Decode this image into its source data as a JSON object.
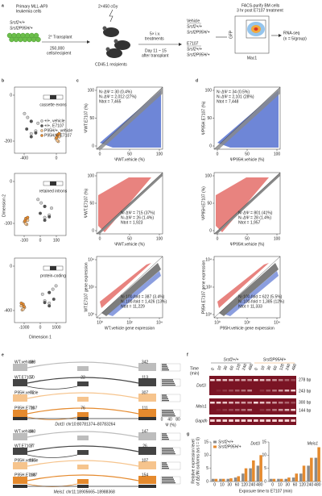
{
  "panel_labels": [
    "a",
    "b",
    "c",
    "d",
    "e",
    "f",
    "g"
  ],
  "a": {
    "source": [
      "Primary MLL-AF9",
      "leukemia cells"
    ],
    "genotypes": [
      "Srsf2+/+",
      "Srsf2P95H/+"
    ],
    "irradiation": "2×450 cGy",
    "transplant": "2° Transplant",
    "cells": [
      "250,000",
      "cells/recipient"
    ],
    "recipients": "CD45.1 recipients",
    "treatment": [
      "5× i.v.",
      "treatments"
    ],
    "timing": [
      "Day 11 ~ 15",
      "after transplant"
    ],
    "groups": [
      {
        "name": "Vehicle",
        "genotypes": [
          "Srsf2+/+",
          "Srsf2P95H/+"
        ]
      },
      {
        "name": "E7107",
        "genotypes": [
          "Srsf2+/+",
          "Srsf2P95H/+"
        ]
      }
    ],
    "facs": [
      "FACS-purify BM cells",
      "3 hr post E7107 treatment"
    ],
    "facs_y": "GFP",
    "facs_x": "Mac1",
    "readout": [
      "RNA-seq",
      "(n = 5/group)"
    ]
  },
  "b": {
    "ylabel": "Dimension 2",
    "xlabel": "Dimension 1",
    "legend": [
      "+/+, vehicle",
      "+/+, E7107",
      "P95H/+, vehicle",
      "P95H/+, E7107"
    ],
    "plots": [
      {
        "label": "cassette exons",
        "yticks": [
          "0",
          "-200"
        ],
        "xticks": [
          "-400",
          "0"
        ]
      },
      {
        "label": "retained introns",
        "yticks": [
          "0",
          "-100"
        ],
        "xticks": [
          "-100",
          "0",
          "100"
        ]
      },
      {
        "label": "protein-coding",
        "yticks": [
          "0",
          "-400"
        ],
        "xticks": [
          "-1000",
          "0",
          "1000"
        ]
      }
    ]
  },
  "c": {
    "rows": [
      {
        "up": "N↑ΔΨ = 30 (0.4%)",
        "down": "N↓ΔΨ = 2,012 (27%)",
        "total": "Ntot = 7,465",
        "ylabel": "ΨWT.E7107 (%)",
        "xlabel": "ΨWT.vehicle (%)"
      },
      {
        "up": "N↑ΔΨ = 715 (37%)",
        "down": "N↓ΔΨ = 26 (1.4%)",
        "total": "Ntot = 1,923",
        "ylabel": "ΨWT.E7107 (%)",
        "xlabel": "ΨWT.vehicle (%)"
      },
      {
        "up": "N↑100-fold = 387 (3.4%)",
        "down": "N↓100-fold = 1,426 (13%)",
        "total": "Ntot = 11,229",
        "ylabel": "WT.E7107 gene expression",
        "xlabel": "WT.vehicle gene expression"
      }
    ]
  },
  "d": {
    "rows": [
      {
        "up": "N↑ΔΨ = 34 (0.5%)",
        "down": "N↓ΔΨ = 2,101 (28%)",
        "total": "Ntot = 7,448",
        "ylabel": "ΨP95H.E7107 (%)",
        "xlabel": "ΨP95H.vehicle (%)"
      },
      {
        "up": "N↑ΔΨ = 801 (41%)",
        "down": "N↓ΔΨ = 28 (1.4%)",
        "total": "Ntot = 1,957",
        "ylabel": "ΨP95H.E7107 (%)",
        "xlabel": "ΨP95H.vehicle (%)"
      },
      {
        "up": "N↑100-fold = 622 (5.5%)",
        "down": "N↓100-fold = 1,385 (12%)",
        "total": "Ntot = 11,333",
        "ylabel": "P95H.E7107 gene expression",
        "xlabel": "P95H.vehicle gene expression"
      }
    ]
  },
  "psi_ticks": [
    "0",
    "50",
    "100"
  ],
  "log_ticks": [
    "10⁰",
    "10²",
    "10⁴"
  ],
  "e": {
    "psi_label": "Ψ (%)",
    "psi_ticks": [
      "0",
      "40",
      "80"
    ],
    "tracks": [
      {
        "gene": "Dot1l",
        "coords": "chr10:80781374–80783264",
        "rows": [
          {
            "name": "WT.vehicle",
            "counts": [
              "188",
              "342"
            ]
          },
          {
            "name": "WT.E7107",
            "counts": [
              "50",
              "22",
              "113"
            ]
          },
          {
            "name": "P95H.vehicle",
            "counts": [
              "72",
              "307"
            ]
          },
          {
            "name": "P95H.E7107",
            "counts": [
              "76",
              "76",
              "111"
            ]
          }
        ]
      },
      {
        "gene": "Meis1",
        "coords": "chr11:18905665–18988368",
        "rows": [
          {
            "name": "WT.vehicle",
            "counts": [
              "163",
              "147"
            ]
          },
          {
            "name": "WT.E7107",
            "counts": [
              "37",
              "26"
            ]
          },
          {
            "name": "P95H.vehicle",
            "counts": [
              "185",
              "107"
            ]
          },
          {
            "name": "P95H.E7107",
            "counts": [
              "168",
              "154"
            ]
          }
        ]
      }
    ]
  },
  "f": {
    "time_label": [
      "Time",
      "(min)"
    ],
    "genotypes": [
      "Srsf2+/+",
      "Srsf2P95H/+"
    ],
    "times": [
      "0",
      "10",
      "30",
      "60",
      "120",
      "240",
      "480"
    ],
    "genes": [
      {
        "name": "Dot1l",
        "bands": [
          "278 bp",
          "243 bp"
        ]
      },
      {
        "name": "Meis1",
        "bands": [
          "300 bp",
          "144 bp"
        ]
      },
      {
        "name": "Gapdh",
        "bands": []
      }
    ]
  },
  "g": {
    "ylabel": [
      "Relative expression level",
      "of ΔE/IN isoforms (vs t = 0)"
    ],
    "xlabel": "Exposure time to E7107 (min)",
    "categories": [
      "0",
      "10",
      "30",
      "60",
      "120",
      "240",
      "480"
    ],
    "ylim": [
      0,
      15
    ],
    "yticks": [
      0,
      5,
      10,
      15
    ],
    "panels": [
      {
        "title": "Dot1l",
        "series": [
          {
            "name": "Srsf2+/+",
            "color": "#8c8c8c",
            "values": [
              1,
              1,
              1,
              1.5,
              3,
              5,
              6
            ]
          },
          {
            "name": "Srsf2P95H/+",
            "color": "#e58a2e",
            "values": [
              1,
              1,
              1.2,
              2,
              5,
              8,
              10
            ]
          }
        ]
      },
      {
        "title": "Meis1",
        "series": [
          {
            "name": "Srsf2+/+",
            "color": "#8c8c8c",
            "values": [
              1,
              1,
              1,
              1.5,
              3,
              6,
              9
            ]
          },
          {
            "name": "Srsf2P95H/+",
            "color": "#e58a2e",
            "values": [
              1,
              1,
              1.5,
              3,
              6,
              9,
              13
            ]
          }
        ]
      }
    ]
  }
}
